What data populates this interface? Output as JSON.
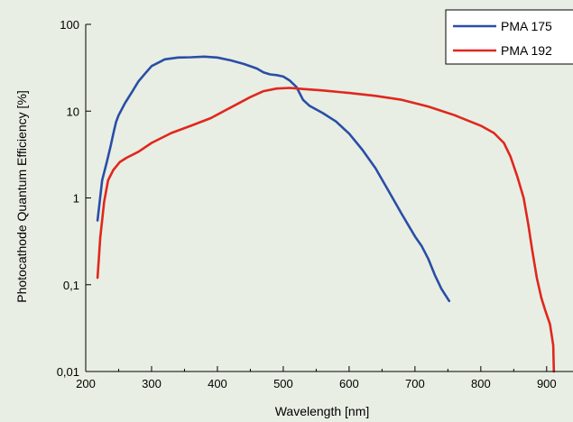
{
  "chart_data": {
    "type": "line",
    "title": "",
    "xlabel": "Wavelength [nm]",
    "ylabel": "Photocathode Quantum Efficiency [%]",
    "xlim": [
      200,
      940
    ],
    "ylim": [
      0.01,
      100
    ],
    "y_scale": "log",
    "x_ticks": [
      200,
      300,
      400,
      500,
      600,
      700,
      800,
      900
    ],
    "x_tick_labels": [
      "200",
      "300",
      "400",
      "500",
      "600",
      "700",
      "800",
      "900"
    ],
    "y_ticks": [
      0.01,
      0.1,
      1,
      10,
      100
    ],
    "y_tick_labels": [
      "0,01",
      "0,1",
      "1",
      "10",
      "100"
    ],
    "grid": false,
    "legend_position": "top-right",
    "series": [
      {
        "name": "PMA 175",
        "color": "#2a4ea6",
        "x": [
          218,
          225,
          232,
          238,
          242,
          246,
          250,
          260,
          270,
          280,
          290,
          300,
          320,
          340,
          360,
          380,
          400,
          420,
          440,
          460,
          470,
          480,
          490,
          500,
          510,
          520,
          525,
          530,
          540,
          560,
          580,
          600,
          620,
          640,
          660,
          680,
          700,
          710,
          720,
          730,
          740,
          752
        ],
        "y": [
          0.55,
          1.6,
          2.6,
          4,
          5.5,
          7.5,
          9,
          12.5,
          16.5,
          22,
          27,
          33,
          39.5,
          41.5,
          41.8,
          42.5,
          41.5,
          38.5,
          35,
          31,
          28,
          26.5,
          26,
          25,
          22.5,
          19,
          16,
          13.5,
          11.5,
          9.5,
          7.6,
          5.5,
          3.6,
          2.2,
          1.2,
          0.65,
          0.36,
          0.28,
          0.2,
          0.13,
          0.09,
          0.065
        ]
      },
      {
        "name": "PMA 192",
        "color": "#e0271e",
        "x": [
          218,
          222,
          228,
          234,
          242,
          252,
          262,
          280,
          300,
          330,
          360,
          390,
          420,
          450,
          470,
          490,
          510,
          530,
          560,
          600,
          640,
          680,
          720,
          760,
          800,
          820,
          835,
          845,
          855,
          865,
          872,
          878,
          885,
          892,
          898,
          905,
          910,
          911
        ],
        "y": [
          0.12,
          0.35,
          0.9,
          1.6,
          2.1,
          2.6,
          2.9,
          3.4,
          4.3,
          5.6,
          6.8,
          8.3,
          11,
          14.5,
          17,
          18.2,
          18.5,
          18,
          17.3,
          16.2,
          15,
          13.5,
          11.3,
          9,
          6.8,
          5.6,
          4.3,
          3,
          1.8,
          1,
          0.5,
          0.25,
          0.12,
          0.07,
          0.05,
          0.035,
          0.02,
          0.01
        ]
      }
    ]
  }
}
